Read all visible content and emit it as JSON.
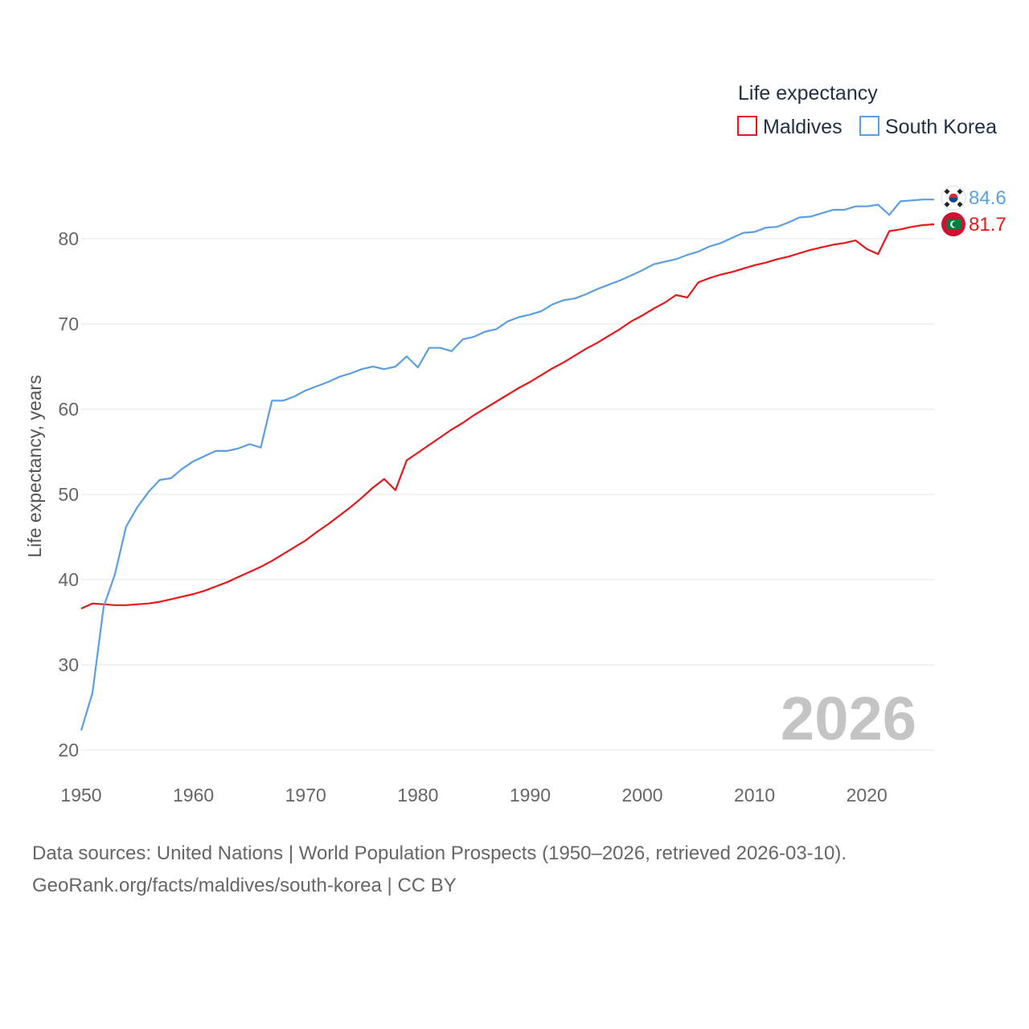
{
  "chart_data": {
    "type": "line",
    "legend": {
      "title": "Life expectancy",
      "placement": "top-right"
    },
    "ylabel": "Life expectancy, years",
    "xlabel": "",
    "xlim": [
      1950,
      2026
    ],
    "ylim": [
      20,
      86
    ],
    "x_ticks": [
      1950,
      1960,
      1970,
      1980,
      1990,
      2000,
      2010,
      2020
    ],
    "y_ticks": [
      20,
      30,
      40,
      50,
      60,
      70,
      80
    ],
    "grid": true,
    "year_watermark": "2026",
    "x": [
      1950,
      1951,
      1952,
      1953,
      1954,
      1955,
      1956,
      1957,
      1958,
      1959,
      1960,
      1961,
      1962,
      1963,
      1964,
      1965,
      1966,
      1967,
      1968,
      1969,
      1970,
      1971,
      1972,
      1973,
      1974,
      1975,
      1976,
      1977,
      1978,
      1979,
      1980,
      1981,
      1982,
      1983,
      1984,
      1985,
      1986,
      1987,
      1988,
      1989,
      1990,
      1991,
      1992,
      1993,
      1994,
      1995,
      1996,
      1997,
      1998,
      1999,
      2000,
      2001,
      2002,
      2003,
      2004,
      2005,
      2006,
      2007,
      2008,
      2009,
      2010,
      2011,
      2012,
      2013,
      2014,
      2015,
      2016,
      2017,
      2018,
      2019,
      2020,
      2021,
      2022,
      2023,
      2024,
      2025,
      2026
    ],
    "series": [
      {
        "name": "Maldives",
        "color": "#e8171a",
        "flag_icon": "maldives-flag-icon",
        "end_label": "81.7",
        "values": [
          36.6,
          37.2,
          37.1,
          37.0,
          37.0,
          37.1,
          37.2,
          37.4,
          37.7,
          38.0,
          38.3,
          38.7,
          39.2,
          39.7,
          40.3,
          40.9,
          41.5,
          42.2,
          43.0,
          43.8,
          44.6,
          45.6,
          46.5,
          47.5,
          48.5,
          49.6,
          50.8,
          51.8,
          50.5,
          54.0,
          54.9,
          55.8,
          56.7,
          57.6,
          58.4,
          59.3,
          60.1,
          60.9,
          61.7,
          62.5,
          63.2,
          64.0,
          64.8,
          65.5,
          66.3,
          67.1,
          67.8,
          68.6,
          69.4,
          70.3,
          71.0,
          71.8,
          72.5,
          73.4,
          73.1,
          74.9,
          75.4,
          75.8,
          76.1,
          76.5,
          76.9,
          77.2,
          77.6,
          77.9,
          78.3,
          78.7,
          79.0,
          79.3,
          79.5,
          79.8,
          78.8,
          78.2,
          80.9,
          81.1,
          81.4,
          81.6,
          81.7
        ]
      },
      {
        "name": "South Korea",
        "color": "#5b9fe3",
        "flag_icon": "south-korea-flag-icon",
        "end_label": "84.6",
        "values": [
          22.3,
          26.7,
          36.8,
          40.6,
          46.2,
          48.5,
          50.3,
          51.7,
          51.9,
          53.0,
          53.9,
          54.5,
          55.1,
          55.1,
          55.4,
          55.9,
          55.5,
          61.0,
          61.0,
          61.5,
          62.2,
          62.7,
          63.2,
          63.8,
          64.2,
          64.7,
          65.0,
          64.7,
          65.0,
          66.2,
          64.9,
          67.2,
          67.2,
          66.8,
          68.2,
          68.5,
          69.1,
          69.4,
          70.3,
          70.8,
          71.1,
          71.5,
          72.3,
          72.8,
          73.0,
          73.5,
          74.1,
          74.6,
          75.1,
          75.7,
          76.3,
          77.0,
          77.3,
          77.6,
          78.1,
          78.5,
          79.1,
          79.5,
          80.1,
          80.7,
          80.8,
          81.3,
          81.4,
          81.9,
          82.5,
          82.6,
          83.0,
          83.4,
          83.4,
          83.8,
          83.8,
          84.0,
          82.8,
          84.4,
          84.5,
          84.6,
          84.6
        ]
      }
    ]
  },
  "source_line_1": "Data sources: United Nations | World Population Prospects (1950–2026, retrieved 2026-03-10).",
  "source_line_2": "GeoRank.org/facts/maldives/south-korea | CC BY"
}
